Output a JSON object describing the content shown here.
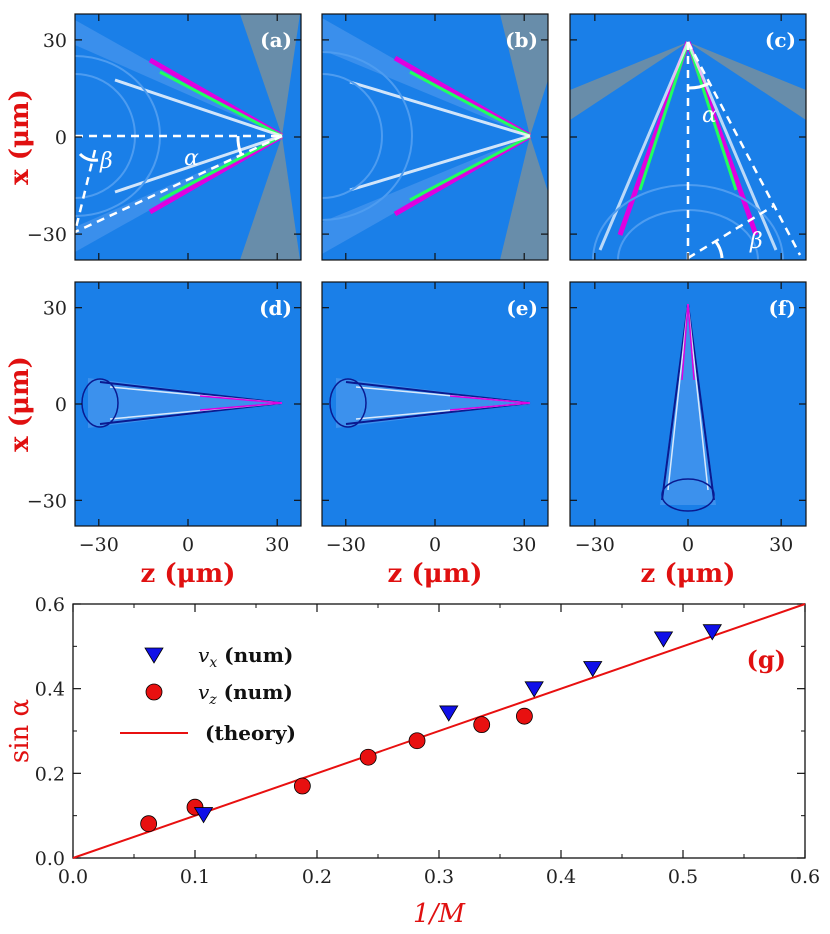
{
  "panels": [
    {
      "label": "(a)"
    },
    {
      "label": "(b)"
    },
    {
      "label": "(c)"
    },
    {
      "label": "(d)"
    },
    {
      "label": "(e)"
    },
    {
      "label": "(f)"
    }
  ],
  "annotations": {
    "alpha": "α",
    "beta": "β"
  },
  "top_axes": {
    "xlabel": "z (μm)",
    "ylabel": "x (μm)",
    "ticks": [
      "−30",
      "0",
      "30"
    ],
    "tick_values": [
      -30,
      0,
      30
    ],
    "range": [
      -38,
      38
    ]
  },
  "colors": {
    "background": "#1a7fe8",
    "accent_red": "#e01010",
    "marker_blue": "#1010e8"
  },
  "chart_data": {
    "type": "scatter",
    "panel_label": "(g)",
    "xlabel": "1/M",
    "ylabel": "sin α",
    "xlim": [
      0.0,
      0.6
    ],
    "ylim": [
      0.0,
      0.6
    ],
    "x_ticks": [
      "0.0",
      "0.1",
      "0.2",
      "0.3",
      "0.4",
      "0.5",
      "0.6"
    ],
    "y_ticks": [
      "0.0",
      "0.2",
      "0.4",
      "0.6"
    ],
    "grid": false,
    "legend_position": "top-left",
    "series": [
      {
        "name": "v_x (num)",
        "legend_main": "v",
        "legend_sub": "x",
        "legend_rest": " (num)",
        "marker": "triangle-down",
        "color": "#1010e8",
        "points": [
          [
            0.107,
            0.105
          ],
          [
            0.308,
            0.345
          ],
          [
            0.378,
            0.402
          ],
          [
            0.426,
            0.45
          ],
          [
            0.484,
            0.52
          ],
          [
            0.524,
            0.537
          ]
        ]
      },
      {
        "name": "v_z (num)",
        "legend_main": "v",
        "legend_sub": "z",
        "legend_rest": " (num)",
        "marker": "circle",
        "color": "#e81010",
        "points": [
          [
            0.062,
            0.081
          ],
          [
            0.1,
            0.12
          ],
          [
            0.188,
            0.17
          ],
          [
            0.242,
            0.238
          ],
          [
            0.282,
            0.277
          ],
          [
            0.335,
            0.315
          ],
          [
            0.37,
            0.335
          ]
        ]
      },
      {
        "name": "(theory)",
        "legend_main": "(theory)",
        "marker": "line",
        "color": "#e81010",
        "points": [
          [
            0.0,
            0.0
          ],
          [
            0.6,
            0.6
          ]
        ]
      }
    ]
  }
}
